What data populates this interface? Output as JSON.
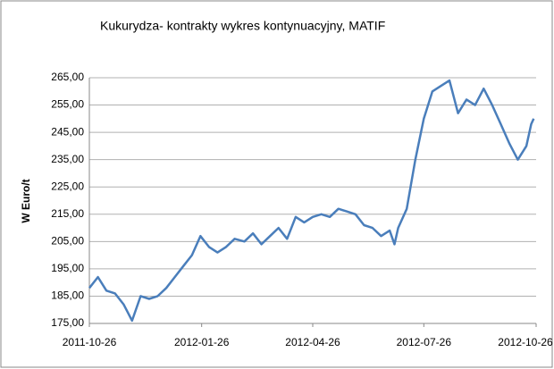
{
  "chart_data": {
    "type": "line",
    "title": "Kukurydza- kontrakty wykres kontynuacyjny, MATIF",
    "y_label": "W Euro/t",
    "x": [
      "2011-10-26",
      "2011-11-02",
      "2011-11-09",
      "2011-11-16",
      "2011-11-23",
      "2011-11-30",
      "2011-12-07",
      "2011-12-14",
      "2011-12-21",
      "2011-12-28",
      "2012-01-04",
      "2012-01-11",
      "2012-01-18",
      "2012-01-25",
      "2012-02-01",
      "2012-02-08",
      "2012-02-15",
      "2012-02-22",
      "2012-03-01",
      "2012-03-08",
      "2012-03-15",
      "2012-03-22",
      "2012-03-29",
      "2012-04-05",
      "2012-04-12",
      "2012-04-19",
      "2012-04-26",
      "2012-05-03",
      "2012-05-10",
      "2012-05-17",
      "2012-05-24",
      "2012-05-31",
      "2012-06-07",
      "2012-06-14",
      "2012-06-21",
      "2012-06-28",
      "2012-07-02",
      "2012-07-05",
      "2012-07-12",
      "2012-07-19",
      "2012-07-26",
      "2012-08-02",
      "2012-08-09",
      "2012-08-16",
      "2012-08-23",
      "2012-08-30",
      "2012-09-06",
      "2012-09-13",
      "2012-09-20",
      "2012-09-27",
      "2012-10-04",
      "2012-10-11",
      "2012-10-18",
      "2012-10-22",
      "2012-10-24"
    ],
    "series": [
      {
        "name": "MATIF",
        "color": "#4a7ebb",
        "values": [
          188,
          192,
          187,
          186,
          182,
          176,
          185,
          184,
          185,
          188,
          192,
          196,
          200,
          207,
          203,
          201,
          203,
          206,
          205,
          208,
          204,
          207,
          210,
          206,
          214,
          212,
          214,
          215,
          214,
          217,
          216,
          215,
          211,
          210,
          207,
          209,
          204,
          210,
          217,
          235,
          250,
          260,
          262,
          264,
          252,
          257,
          255,
          261,
          255,
          248,
          241,
          235,
          240,
          248,
          250
        ]
      }
    ],
    "xlim": [
      "2011-10-26",
      "2012-10-26"
    ],
    "xticks": [
      "2011-10-26",
      "2012-01-26",
      "2012-04-26",
      "2012-07-26",
      "2012-10-26"
    ],
    "ylim": [
      175,
      265
    ],
    "yticks": [
      {
        "value": 175,
        "label": "175,00"
      },
      {
        "value": 185,
        "label": "185,00"
      },
      {
        "value": 195,
        "label": "195,00"
      },
      {
        "value": 205,
        "label": "205,00"
      },
      {
        "value": 215,
        "label": "215,00"
      },
      {
        "value": 225,
        "label": "225,00"
      },
      {
        "value": 235,
        "label": "235,00"
      },
      {
        "value": 245,
        "label": "245,00"
      },
      {
        "value": 255,
        "label": "255,00"
      },
      {
        "value": 265,
        "label": "265,00"
      }
    ],
    "grid": true
  }
}
